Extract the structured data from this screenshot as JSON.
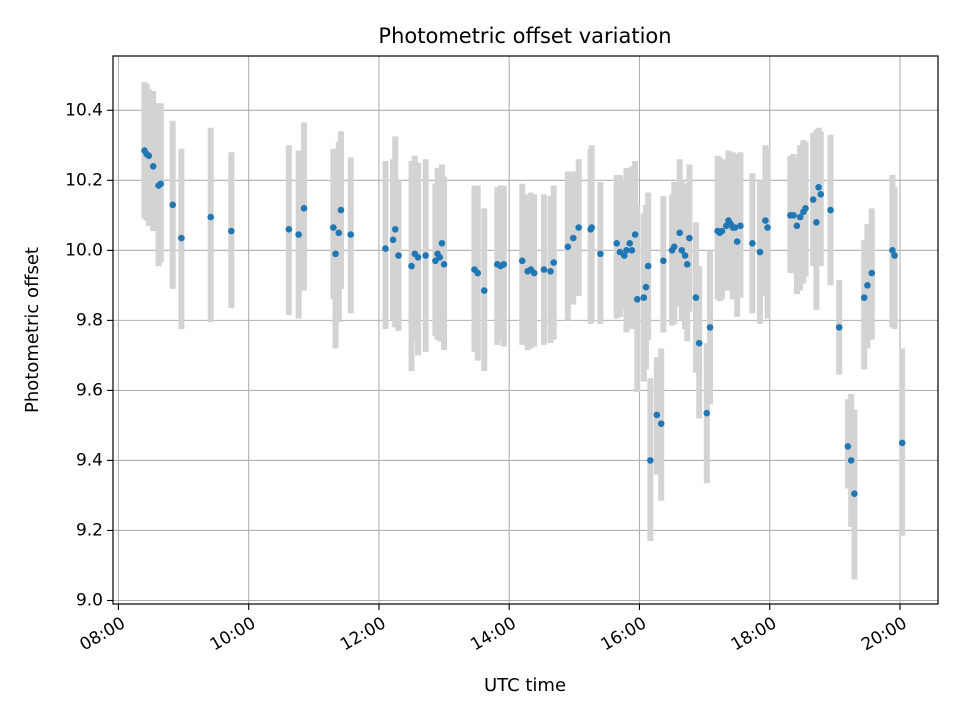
{
  "chart_data": {
    "type": "scatter",
    "title": "Photometric offset variation",
    "xlabel": "UTC time",
    "ylabel": "Photometric offset",
    "x_unit": "time of day (UTC)",
    "xlim": [
      "07:55",
      "20:35"
    ],
    "ylim": [
      8.99,
      10.555
    ],
    "x_ticks": [
      "08:00",
      "10:00",
      "12:00",
      "14:00",
      "16:00",
      "18:00",
      "20:00"
    ],
    "y_ticks": [
      "9.0",
      "9.2",
      "9.4",
      "9.6",
      "9.8",
      "10.0",
      "10.2",
      "10.4"
    ],
    "grid": true,
    "x_tick_rotation": "30°",
    "colors": {
      "points": "#1f77b4",
      "errorbars": "#d3d3d3",
      "grid": "#b0b0b0"
    },
    "series": [
      {
        "x": [
          "08:24",
          "08:26",
          "08:28",
          "08:32",
          "08:37",
          "08:39",
          "08:50",
          "08:58",
          "09:25",
          "09:44",
          "10:37",
          "10:46",
          "10:51",
          "11:18",
          "11:20",
          "11:23",
          "11:25",
          "11:34",
          "12:06",
          "12:13",
          "12:15",
          "12:18",
          "12:30",
          "12:33",
          "12:36",
          "12:43",
          "12:52",
          "12:54",
          "12:56",
          "12:58",
          "13:00",
          "13:28",
          "13:31",
          "13:37",
          "13:49",
          "13:52",
          "13:55",
          "14:12",
          "14:17",
          "14:20",
          "14:23",
          "14:32",
          "14:38",
          "14:41",
          "14:54",
          "14:59",
          "15:04",
          "15:15",
          "15:16",
          "15:24",
          "15:39",
          "15:42",
          "15:46",
          "15:48",
          "15:51",
          "15:53",
          "15:56",
          "15:58",
          "16:04",
          "16:06",
          "16:08",
          "16:10",
          "16:16",
          "16:20",
          "16:22",
          "16:30",
          "16:32",
          "16:37",
          "16:39",
          "16:42",
          "16:44",
          "16:46",
          "16:52",
          "16:55",
          "17:02",
          "17:05",
          "17:12",
          "17:14",
          "17:16",
          "17:20",
          "17:22",
          "17:24",
          "17:26",
          "17:28",
          "17:30",
          "17:33",
          "17:44",
          "17:51",
          "17:56",
          "17:58",
          "18:19",
          "18:22",
          "18:25",
          "18:28",
          "18:31",
          "18:33",
          "18:40",
          "18:43",
          "18:45",
          "18:47",
          "18:56",
          "19:04",
          "19:12",
          "19:15",
          "19:18",
          "19:27",
          "19:30",
          "19:34",
          "19:53",
          "19:55",
          "20:02"
        ],
        "y": [
          10.285,
          10.275,
          10.27,
          10.24,
          10.185,
          10.19,
          10.13,
          10.035,
          10.095,
          10.055,
          10.06,
          10.045,
          10.12,
          10.065,
          9.99,
          10.05,
          10.115,
          10.045,
          10.005,
          10.03,
          10.06,
          9.985,
          9.955,
          9.99,
          9.98,
          9.985,
          9.97,
          9.99,
          9.98,
          10.02,
          9.96,
          9.945,
          9.935,
          9.885,
          9.96,
          9.955,
          9.96,
          9.97,
          9.94,
          9.945,
          9.935,
          9.945,
          9.94,
          9.965,
          10.01,
          10.035,
          10.065,
          10.06,
          10.065,
          9.99,
          10.02,
          9.995,
          9.985,
          10.0,
          10.02,
          10.0,
          10.045,
          9.86,
          9.865,
          9.895,
          9.955,
          9.4,
          9.53,
          9.505,
          9.97,
          10.0,
          10.01,
          10.05,
          10.0,
          9.985,
          9.96,
          10.035,
          9.865,
          9.735,
          9.535,
          9.78,
          10.055,
          10.05,
          10.055,
          10.07,
          10.085,
          10.075,
          10.065,
          10.065,
          10.025,
          10.07,
          10.02,
          9.995,
          10.085,
          10.065,
          10.1,
          10.1,
          10.07,
          10.095,
          10.11,
          10.12,
          10.145,
          10.08,
          10.18,
          10.16,
          10.115,
          9.78,
          9.44,
          9.4,
          9.305,
          9.865,
          9.9,
          9.935,
          10.0,
          9.985,
          9.45
        ],
        "err_low": [
          10.09,
          10.085,
          10.07,
          10.055,
          9.955,
          9.965,
          9.89,
          9.775,
          9.795,
          9.835,
          9.815,
          9.805,
          9.885,
          9.86,
          9.72,
          9.795,
          9.89,
          9.82,
          9.775,
          9.8,
          9.78,
          9.77,
          9.655,
          9.74,
          9.7,
          9.71,
          9.755,
          9.745,
          9.74,
          9.795,
          9.715,
          9.71,
          9.685,
          9.655,
          9.73,
          9.745,
          9.725,
          9.73,
          9.715,
          9.72,
          9.725,
          9.73,
          9.735,
          9.745,
          9.8,
          9.845,
          9.87,
          9.79,
          9.795,
          9.79,
          9.805,
          9.81,
          9.83,
          9.765,
          9.81,
          9.775,
          9.825,
          9.595,
          9.625,
          9.66,
          9.745,
          9.17,
          9.36,
          9.285,
          9.765,
          9.785,
          9.79,
          9.84,
          9.8,
          9.775,
          9.74,
          9.825,
          9.65,
          9.52,
          9.335,
          9.56,
          9.86,
          9.855,
          9.86,
          9.885,
          9.885,
          9.895,
          9.86,
          9.87,
          9.81,
          9.865,
          9.82,
          9.79,
          9.87,
          9.805,
          9.935,
          9.935,
          9.875,
          9.885,
          9.905,
          9.925,
          9.955,
          9.83,
          9.955,
          9.955,
          9.9,
          9.645,
          9.32,
          9.21,
          9.06,
          9.66,
          9.72,
          9.745,
          9.78,
          9.775,
          9.185
        ],
        "err_high": [
          10.48,
          10.475,
          10.46,
          10.455,
          10.42,
          10.42,
          10.37,
          10.29,
          10.35,
          10.28,
          10.3,
          10.285,
          10.365,
          10.29,
          10.265,
          10.31,
          10.34,
          10.265,
          10.255,
          10.26,
          10.325,
          10.2,
          10.255,
          10.27,
          10.25,
          10.26,
          10.19,
          10.235,
          10.22,
          10.245,
          10.21,
          10.185,
          10.185,
          10.12,
          10.18,
          10.185,
          10.185,
          10.19,
          10.16,
          10.165,
          10.16,
          10.16,
          10.155,
          10.185,
          10.225,
          10.225,
          10.26,
          10.29,
          10.3,
          10.195,
          10.215,
          10.215,
          10.2,
          10.235,
          10.225,
          10.24,
          10.255,
          10.13,
          10.105,
          10.13,
          10.165,
          9.635,
          9.695,
          9.72,
          10.155,
          10.16,
          10.195,
          10.26,
          10.2,
          10.19,
          10.18,
          10.245,
          10.08,
          9.955,
          9.735,
          10.0,
          10.27,
          10.265,
          10.255,
          10.26,
          10.285,
          10.255,
          10.28,
          10.275,
          10.24,
          10.28,
          10.22,
          10.2,
          10.3,
          10.295,
          10.27,
          10.275,
          10.265,
          10.3,
          10.315,
          10.31,
          10.335,
          10.345,
          10.35,
          10.34,
          10.33,
          9.915,
          9.575,
          9.59,
          9.545,
          10.03,
          10.075,
          10.12,
          10.215,
          10.18,
          9.72
        ]
      }
    ]
  }
}
